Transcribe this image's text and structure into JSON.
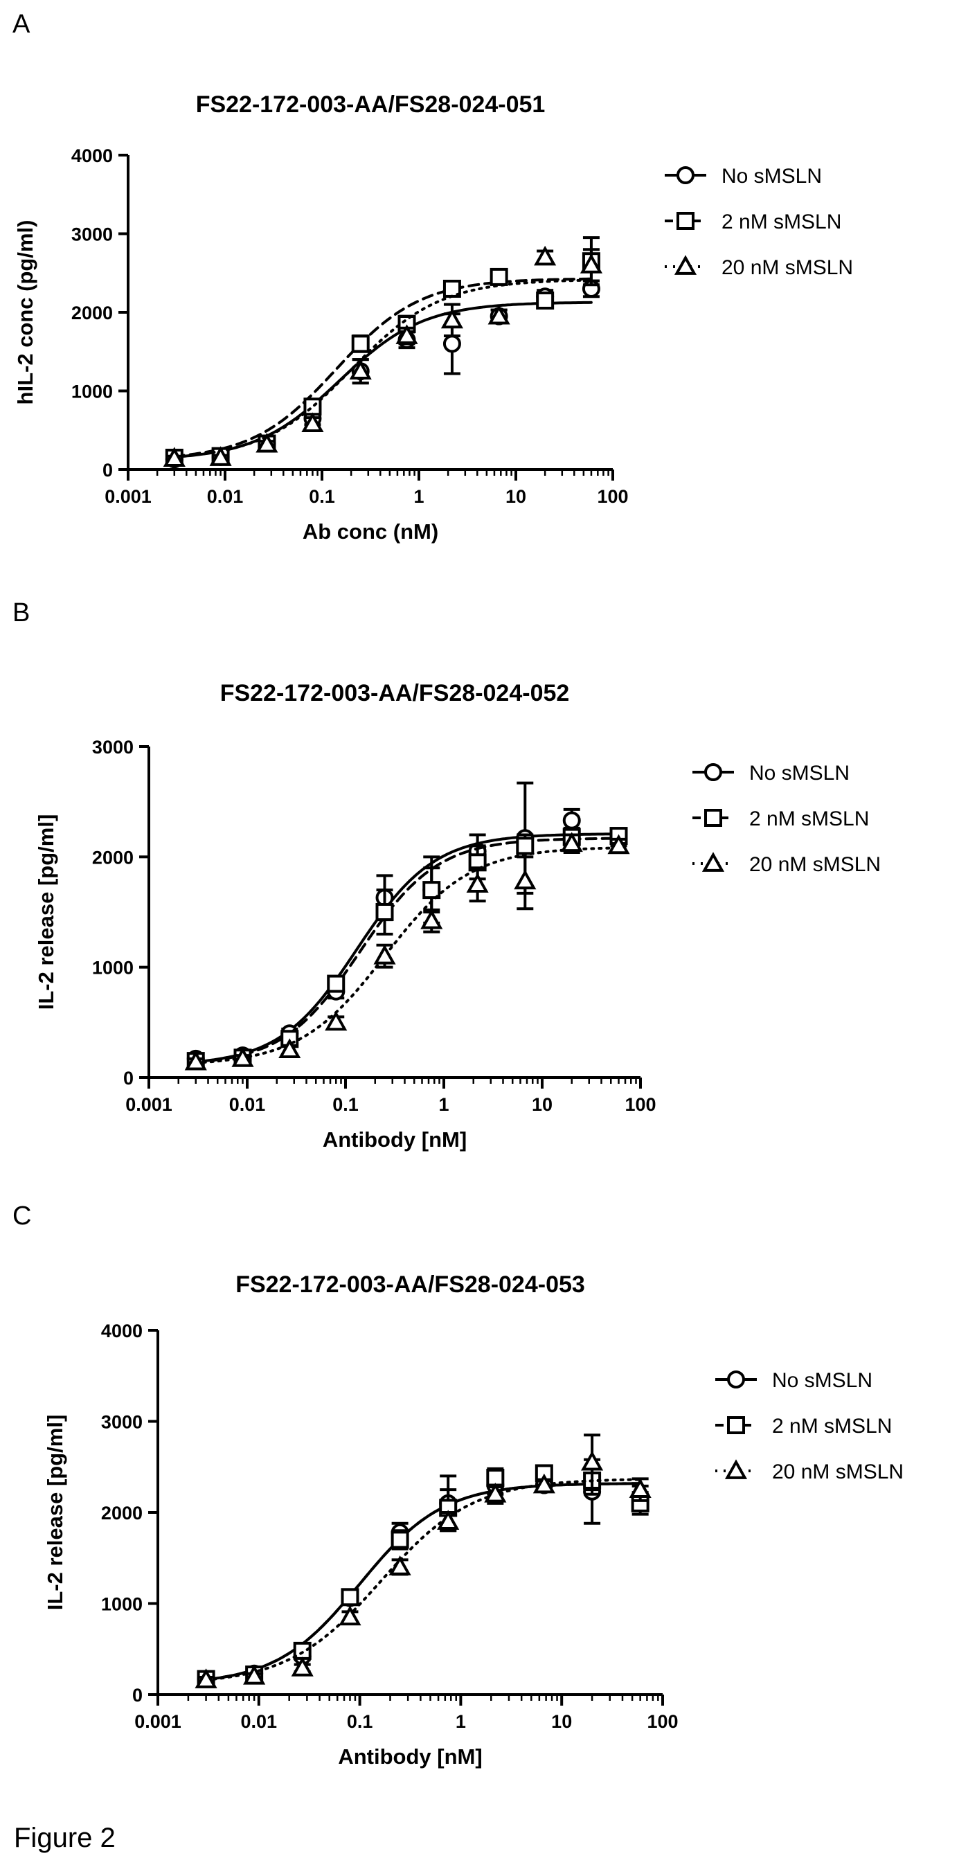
{
  "figure_caption": "Figure 2",
  "chart_data": [
    {
      "panel": "A",
      "type": "scatter",
      "title": "FS22-172-003-AA/FS28-024-051",
      "xlabel": "Ab conc (nM)",
      "ylabel": "hIL-2 conc (pg/ml)",
      "x_scale": "log",
      "xlim": [
        0.001,
        100
      ],
      "ylim": [
        0,
        4000
      ],
      "x_ticks": [
        "0.001",
        "0.01",
        "0.1",
        "1",
        "10",
        "100"
      ],
      "y_ticks": [
        "0",
        "1000",
        "2000",
        "3000",
        "4000"
      ],
      "legend_position": "right",
      "x": [
        0.003,
        0.009,
        0.027,
        0.08,
        0.25,
        0.75,
        2.2,
        6.7,
        20,
        60
      ],
      "series": [
        {
          "name": "No sMSLN",
          "marker": "circle",
          "line": "solid",
          "values": [
            130,
            160,
            330,
            650,
            1250,
            1650,
            1600,
            1950,
            2200,
            2300
          ],
          "errors": [
            30,
            30,
            40,
            80,
            150,
            100,
            380,
            80,
            80,
            100
          ],
          "fit": {
            "bottom": 120,
            "top": 2130,
            "ec50": 0.15,
            "hill": 1.0
          }
        },
        {
          "name": "2 nM sMSLN",
          "marker": "square",
          "line": "dashed",
          "values": [
            150,
            170,
            330,
            800,
            1600,
            1850,
            2300,
            2450,
            2150,
            2650
          ],
          "errors": [
            30,
            30,
            40,
            80,
            100,
            100,
            80,
            80,
            80,
            300
          ],
          "fit": {
            "bottom": 120,
            "top": 2430,
            "ec50": 0.14,
            "hill": 1.0
          }
        },
        {
          "name": "20 nM sMSLN",
          "marker": "triangle",
          "line": "dotted",
          "values": [
            140,
            150,
            320,
            580,
            1250,
            1700,
            1900,
            1950,
            2700,
            2600
          ],
          "errors": [
            30,
            30,
            40,
            80,
            150,
            100,
            200,
            80,
            80,
            200
          ],
          "fit": {
            "bottom": 120,
            "top": 2420,
            "ec50": 0.2,
            "hill": 0.95
          }
        }
      ]
    },
    {
      "panel": "B",
      "type": "scatter",
      "title": "FS22-172-003-AA/FS28-024-052",
      "xlabel": "Antibody [nM]",
      "ylabel": "IL-2 release [pg/ml]",
      "x_scale": "log",
      "xlim": [
        0.001,
        100
      ],
      "ylim": [
        0,
        3000
      ],
      "x_ticks": [
        "0.001",
        "0.01",
        "0.1",
        "1",
        "10",
        "100"
      ],
      "y_ticks": [
        "0",
        "1000",
        "2000",
        "3000"
      ],
      "legend_position": "right",
      "x": [
        0.003,
        0.009,
        0.027,
        0.08,
        0.25,
        0.75,
        2.2,
        6.7,
        20,
        60
      ],
      "series": [
        {
          "name": "No sMSLN",
          "marker": "circle",
          "line": "solid",
          "values": [
            170,
            200,
            400,
            780,
            1630,
            1700,
            2050,
            2170,
            2330,
            2160
          ],
          "errors": [
            30,
            30,
            40,
            60,
            200,
            300,
            150,
            500,
            100,
            60
          ],
          "fit": {
            "bottom": 110,
            "top": 2210,
            "ec50": 0.13,
            "hill": 1.1
          }
        },
        {
          "name": "2 nM sMSLN",
          "marker": "square",
          "line": "dashed",
          "values": [
            150,
            180,
            350,
            850,
            1500,
            1700,
            1950,
            2100,
            2180,
            2190
          ],
          "errors": [
            30,
            30,
            40,
            60,
            200,
            200,
            150,
            100,
            80,
            60
          ],
          "fit": {
            "bottom": 110,
            "top": 2170,
            "ec50": 0.14,
            "hill": 1.1
          }
        },
        {
          "name": "20 nM sMSLN",
          "marker": "triangle",
          "line": "dotted",
          "values": [
            140,
            170,
            250,
            500,
            1100,
            1420,
            1750,
            1780,
            2120,
            2100
          ],
          "errors": [
            30,
            30,
            40,
            50,
            100,
            100,
            150,
            250,
            80,
            60
          ],
          "fit": {
            "bottom": 110,
            "top": 2090,
            "ec50": 0.25,
            "hill": 1.0
          }
        }
      ]
    },
    {
      "panel": "C",
      "type": "scatter",
      "title": "FS22-172-003-AA/FS28-024-053",
      "xlabel": "Antibody [nM]",
      "ylabel": "IL-2 release [pg/ml]",
      "x_scale": "log",
      "xlim": [
        0.001,
        100
      ],
      "ylim": [
        0,
        4000
      ],
      "x_ticks": [
        "0.001",
        "0.01",
        "0.1",
        "1",
        "10",
        "100"
      ],
      "y_ticks": [
        "0",
        "1000",
        "2000",
        "3000",
        "4000"
      ],
      "legend_position": "right",
      "x": [
        0.003,
        0.009,
        0.027,
        0.08,
        0.25,
        0.75,
        2.2,
        6.7,
        20,
        60
      ],
      "series": [
        {
          "name": "No sMSLN",
          "marker": "circle",
          "line": "solid",
          "values": [
            170,
            230,
            420,
            1060,
            1780,
            2100,
            2300,
            2300,
            2230,
            2170
          ],
          "errors": [
            30,
            30,
            40,
            60,
            100,
            300,
            100,
            60,
            350,
            120
          ],
          "fit": {
            "bottom": 110,
            "top": 2320,
            "ec50": 0.1,
            "hill": 1.05
          }
        },
        {
          "name": "2 nM sMSLN",
          "marker": "square",
          "line": "dashed",
          "values": [
            170,
            220,
            480,
            1070,
            1700,
            2050,
            2380,
            2430,
            2350,
            2100
          ],
          "errors": [
            30,
            30,
            40,
            60,
            100,
            200,
            100,
            60,
            150,
            120
          ],
          "fit": {
            "bottom": 110,
            "top": 2320,
            "ec50": 0.1,
            "hill": 1.05
          }
        },
        {
          "name": "20 nM sMSLN",
          "marker": "triangle",
          "line": "dotted",
          "values": [
            160,
            200,
            290,
            850,
            1400,
            1900,
            2200,
            2300,
            2550,
            2250
          ],
          "errors": [
            30,
            30,
            40,
            60,
            80,
            100,
            100,
            60,
            300,
            120
          ],
          "fit": {
            "bottom": 110,
            "top": 2370,
            "ec50": 0.16,
            "hill": 0.95
          }
        }
      ]
    }
  ]
}
